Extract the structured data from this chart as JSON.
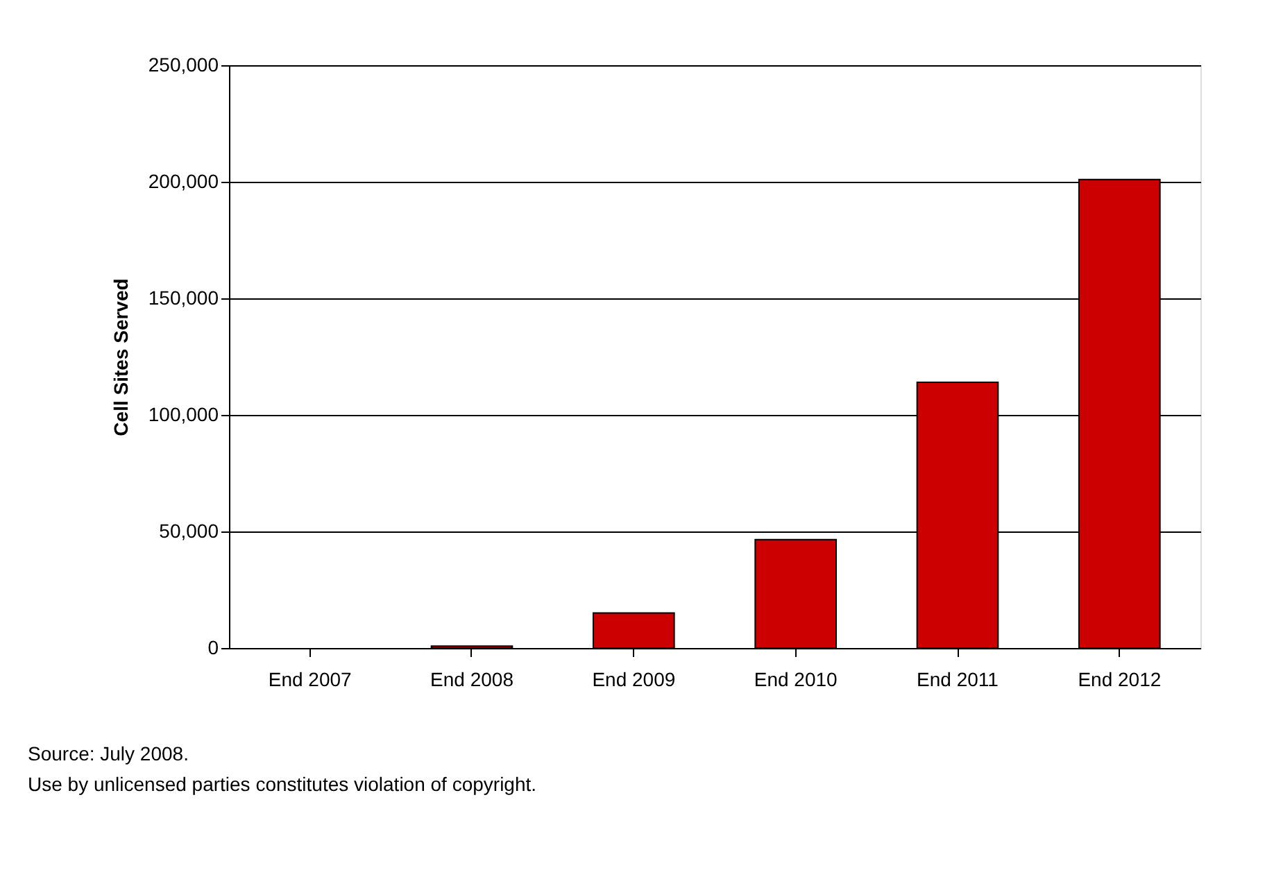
{
  "chart_data": {
    "type": "bar",
    "ylabel": "Cell Sites  Served",
    "categories": [
      "End 2007",
      "End 2008",
      "End 2009",
      "End 2010",
      "End 2011",
      "End 2012"
    ],
    "values": [
      null,
      800,
      15000,
      46500,
      114000,
      201000
    ],
    "color": "#cc0000",
    "ylim": [
      0,
      250000
    ],
    "yticks": [
      {
        "value": 0,
        "label": "0"
      },
      {
        "value": 50000,
        "label": "50,000"
      },
      {
        "value": 100000,
        "label": "100,000"
      },
      {
        "value": 150000,
        "label": "150,000"
      },
      {
        "value": 200000,
        "label": "200,000"
      },
      {
        "value": 250000,
        "label": "250,000"
      }
    ],
    "grid": "y",
    "annotations": [
      "Source: July 2008.",
      "Use by unlicensed parties constitutes violation of copyright."
    ]
  }
}
